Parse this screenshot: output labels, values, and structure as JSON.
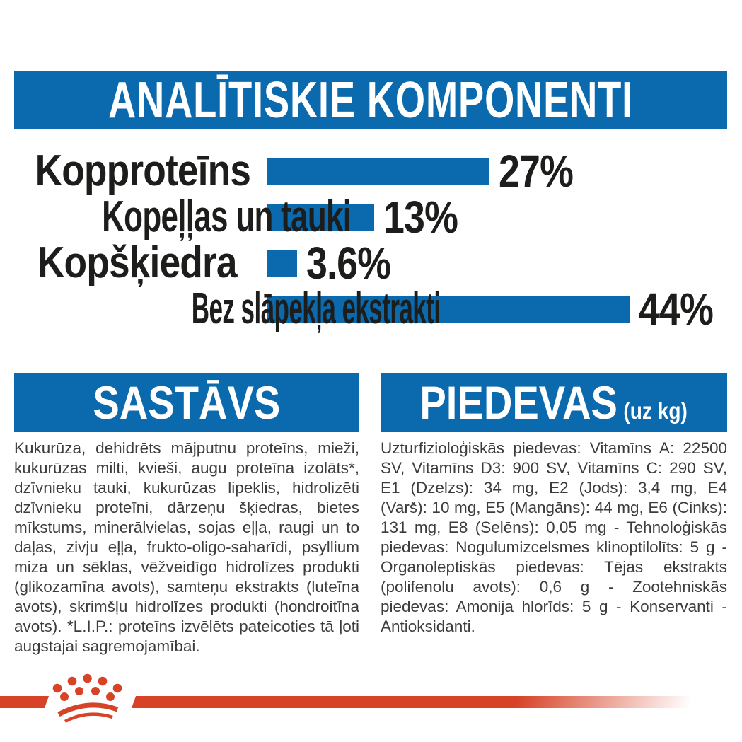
{
  "title_bar": {
    "label": "ANALĪTISKIE KOMPONENTI"
  },
  "chart_data": {
    "type": "bar",
    "orientation": "horizontal",
    "title": "ANALĪTISKIE KOMPONENTI",
    "categories": [
      "Kopproteīns",
      "Kopeļļas un tauki",
      "Kopšķiedra",
      "Bez slāpekļa ekstrakti"
    ],
    "values": [
      27,
      13,
      3.6,
      44
    ],
    "value_labels": [
      "27%",
      "13%",
      "3.6%",
      "44%"
    ],
    "axis_max": 44,
    "bar_color": "#0b69ae",
    "grid": false,
    "legend": false
  },
  "sections": {
    "sastavs": {
      "title": "SASTĀVS",
      "body": "Kukurūza, dehidrēts mājputnu proteīns, mieži, kukurūzas milti, kvieši, augu proteīna izolāts*, dzīvnieku tauki, kukurūzas lipeklis, hidrolizēti dzīvnieku proteīni, dārzeņu šķiedras, bietes mīkstums, minerālvielas, sojas eļļa, raugi un to daļas, zivju eļļa, frukto-oligo-saharīdi, psyllium miza un sēklas, vēžveidīgo hidrolīzes produkti (glikozamīna avots), samteņu ekstrakts (luteīna avots), skrimšļu hidrolīzes produkti (hondroitīna avots). *L.I.P.: proteīns izvēlēts pateicoties tā ļoti augstajai sagremojamībai."
    },
    "piedevas": {
      "title": "PIEDEVAS",
      "unit_suffix": "(uz kg)",
      "body": "Uzturfizioloģiskās piedevas: Vitamīns A: 22500 SV, Vitamīns D3: 900 SV, Vitamīns C: 290 SV, E1 (Dzelzs): 34 mg, E2 (Jods): 3,4 mg, E4 (Varš): 10 mg, E5 (Mangāns): 44 mg, E6 (Cinks): 131 mg, E8 (Selēns): 0,05 mg - Tehnoloģiskās piedevas: Nogulumizcelsmes klinoptilolīts: 5 g - Organoleptiskās piedevas: Tējas ekstrakts (polifenolu avots): 0,6 g - Zootehniskās piedevas: Amonija hlorīds: 5 g - Konservanti - Antioksidanti."
    }
  },
  "footer": {
    "brand_logo": "royal-canin-crown-icon"
  },
  "colors": {
    "blue": "#0b69ae",
    "red": "#d74327",
    "body_text": "#3c3c3b",
    "heading_text": "#1d1d1b",
    "background": "#ffffff"
  }
}
